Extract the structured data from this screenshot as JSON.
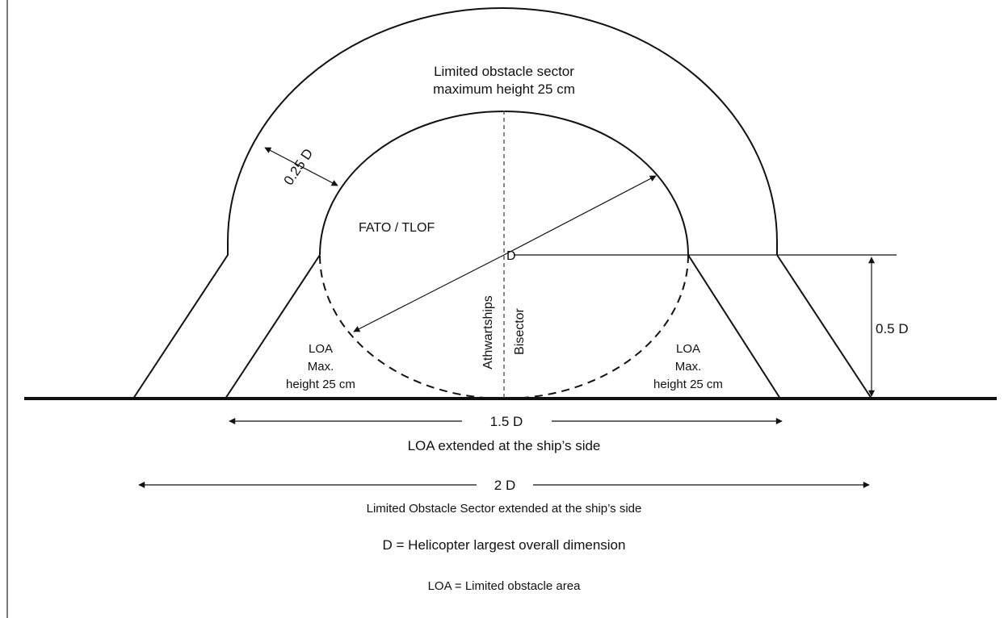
{
  "labels": {
    "sector_line1": "Limited obstacle sector",
    "sector_line2": "maximum height 25 cm",
    "width_quarter": "0.25 D",
    "fato": "FATO / TLOF",
    "center_d": "D",
    "athwartships": "Athwartships",
    "bisector": "Bisector",
    "loa_left_1": "LOA",
    "loa_left_2": "Max.",
    "loa_left_3": "height 25 cm",
    "loa_right_1": "LOA",
    "loa_right_2": "Max.",
    "loa_right_3": "height 25 cm",
    "half_d": "0.5 D",
    "one_half_d": "1.5 D",
    "loa_extended": "LOA extended at the ship’s side",
    "two_d": "2 D",
    "sector_extended": "Limited Obstacle Sector extended at the ship’s side",
    "legend_d": "D = Helicopter largest overall dimension",
    "legend_loa": "LOA = Limited obstacle area"
  }
}
